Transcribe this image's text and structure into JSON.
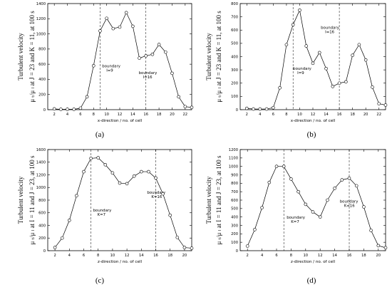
{
  "chart_data": [
    {
      "panel": "(a)",
      "type": "line",
      "xlabel": "x-direction / no. of cell",
      "ylabel": [
        "Turbulent velocity",
        "μ ₜ/μ ₗ at J = 23 and K = 11, at 100 s"
      ],
      "xlim": [
        1,
        23
      ],
      "ylim": [
        0,
        1400
      ],
      "xticks": [
        2,
        4,
        6,
        8,
        10,
        12,
        14,
        16,
        18,
        20,
        22
      ],
      "yticks": [
        0,
        200,
        400,
        600,
        800,
        1000,
        1200,
        1400
      ],
      "x": [
        2,
        3,
        4,
        5,
        6,
        7,
        8,
        9,
        10,
        11,
        12,
        13,
        14,
        15,
        16,
        17,
        18,
        19,
        20,
        21,
        22,
        23
      ],
      "y": [
        10,
        5,
        5,
        5,
        20,
        170,
        580,
        1040,
        1205,
        1070,
        1090,
        1280,
        1100,
        680,
        710,
        730,
        860,
        760,
        480,
        170,
        40,
        30
      ],
      "boundaries": [
        {
          "x": 9,
          "label": [
            "boundary",
            "I=9"
          ],
          "lx": 9.3,
          "ly": 560
        },
        {
          "x": 16,
          "label": [
            "boundary",
            "I=16"
          ],
          "lx": 14.9,
          "ly": 470
        }
      ]
    },
    {
      "panel": "(b)",
      "type": "line",
      "xlabel": "x-direction / no. of cell",
      "ylabel": [
        "Turbulent velocity",
        "μ ₜ/μ ₗ at J = 23 and K = 11, at 100 s"
      ],
      "xlim": [
        1,
        23
      ],
      "ylim": [
        0,
        800
      ],
      "xticks": [
        2,
        4,
        6,
        8,
        10,
        12,
        14,
        16,
        18,
        20,
        22
      ],
      "yticks": [
        0,
        100,
        200,
        300,
        400,
        500,
        600,
        700,
        800
      ],
      "x": [
        2,
        3,
        4,
        5,
        6,
        7,
        8,
        9,
        10,
        11,
        12,
        13,
        14,
        15,
        16,
        17,
        18,
        19,
        20,
        21,
        22,
        23
      ],
      "y": [
        10,
        5,
        5,
        5,
        15,
        165,
        490,
        640,
        750,
        480,
        350,
        430,
        310,
        175,
        200,
        210,
        410,
        490,
        375,
        170,
        45,
        35
      ],
      "boundaries": [
        {
          "x": 9,
          "label": [
            "boundary",
            "I=9"
          ],
          "lx": 9.0,
          "ly": 300
        },
        {
          "x": 16,
          "label": [
            "boundary",
            "I=16"
          ],
          "lx": 13.2,
          "ly": 610
        }
      ]
    },
    {
      "panel": "(c)",
      "type": "line",
      "xlabel": "z-direction / no. of cell",
      "ylabel": [
        "Turbulent velocity",
        "μ ₜ/μ ₗ at I = 11 and J = 23, at 100 s"
      ],
      "xlim": [
        1,
        21
      ],
      "ylim": [
        0,
        1600
      ],
      "xticks": [
        2,
        4,
        6,
        8,
        10,
        12,
        14,
        16,
        18,
        20
      ],
      "yticks": [
        0,
        200,
        400,
        600,
        800,
        1000,
        1200,
        1400,
        1600
      ],
      "x": [
        2,
        3,
        4,
        5,
        6,
        7,
        8,
        9,
        10,
        11,
        12,
        13,
        14,
        15,
        16,
        17,
        18,
        19,
        20,
        21
      ],
      "y": [
        50,
        200,
        480,
        870,
        1250,
        1460,
        1470,
        1360,
        1230,
        1070,
        1060,
        1180,
        1250,
        1250,
        1150,
        900,
        560,
        210,
        50,
        40
      ],
      "boundaries": [
        {
          "x": 7,
          "label": [
            "boundary",
            "K=7"
          ],
          "lx": 7.3,
          "ly": 620
        },
        {
          "x": 16,
          "label": [
            "boundary",
            "K=16"
          ],
          "lx": 14.8,
          "ly": 900
        }
      ]
    },
    {
      "panel": "(d)",
      "type": "line",
      "xlabel": "z-direction / no. of cell",
      "ylabel": [
        "Turbulent velocity",
        "μ ₜ/μ ₗ at I = 11 and J = 23, at 100 s"
      ],
      "xlim": [
        1,
        21
      ],
      "ylim": [
        0,
        1200
      ],
      "xticks": [
        2,
        4,
        6,
        8,
        10,
        12,
        14,
        16,
        18,
        20
      ],
      "yticks": [
        0,
        100,
        200,
        300,
        400,
        500,
        600,
        700,
        800,
        900,
        1000,
        1100,
        1200
      ],
      "x": [
        2,
        3,
        4,
        5,
        6,
        7,
        8,
        9,
        10,
        11,
        12,
        13,
        14,
        15,
        16,
        17,
        18,
        19,
        20,
        21
      ],
      "y": [
        55,
        250,
        510,
        810,
        1000,
        1000,
        850,
        700,
        550,
        460,
        400,
        600,
        740,
        840,
        860,
        770,
        520,
        240,
        60,
        35
      ],
      "boundaries": [
        {
          "x": 7,
          "label": [
            "boundary",
            "K=7"
          ],
          "lx": 7.4,
          "ly": 380
        },
        {
          "x": 16,
          "label": [
            "boundary",
            "K=16"
          ],
          "lx": 14.7,
          "ly": 570
        }
      ]
    }
  ]
}
